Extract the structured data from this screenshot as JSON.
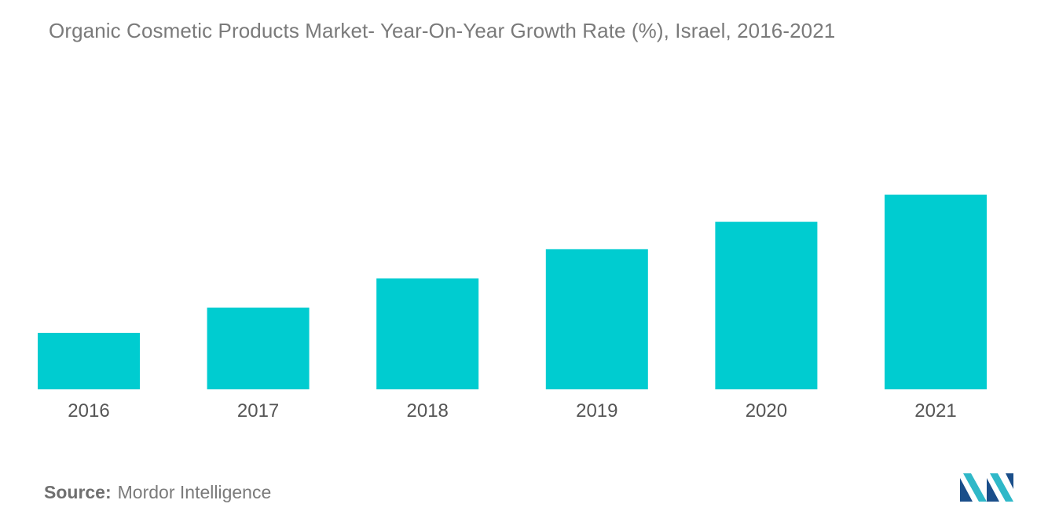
{
  "chart_data": {
    "type": "bar",
    "title": "Organic Cosmetic Products Market- Year-On-Year Growth Rate (%), Israel, 2016-2021",
    "categories": [
      "2016",
      "2017",
      "2018",
      "2019",
      "2020",
      "2021"
    ],
    "values": [
      2.9,
      4.2,
      5.7,
      7.2,
      8.6,
      10.0
    ],
    "ylim": [
      0,
      13.3
    ],
    "grid": false,
    "legend": "none",
    "bar_color": "#00ccd0"
  },
  "source": {
    "label": "Source:",
    "text": "Mordor Intelligence"
  },
  "logo": {
    "icon": "mordor-intelligence-logo",
    "colors": [
      "#1a4e8a",
      "#2fb8c8"
    ]
  }
}
